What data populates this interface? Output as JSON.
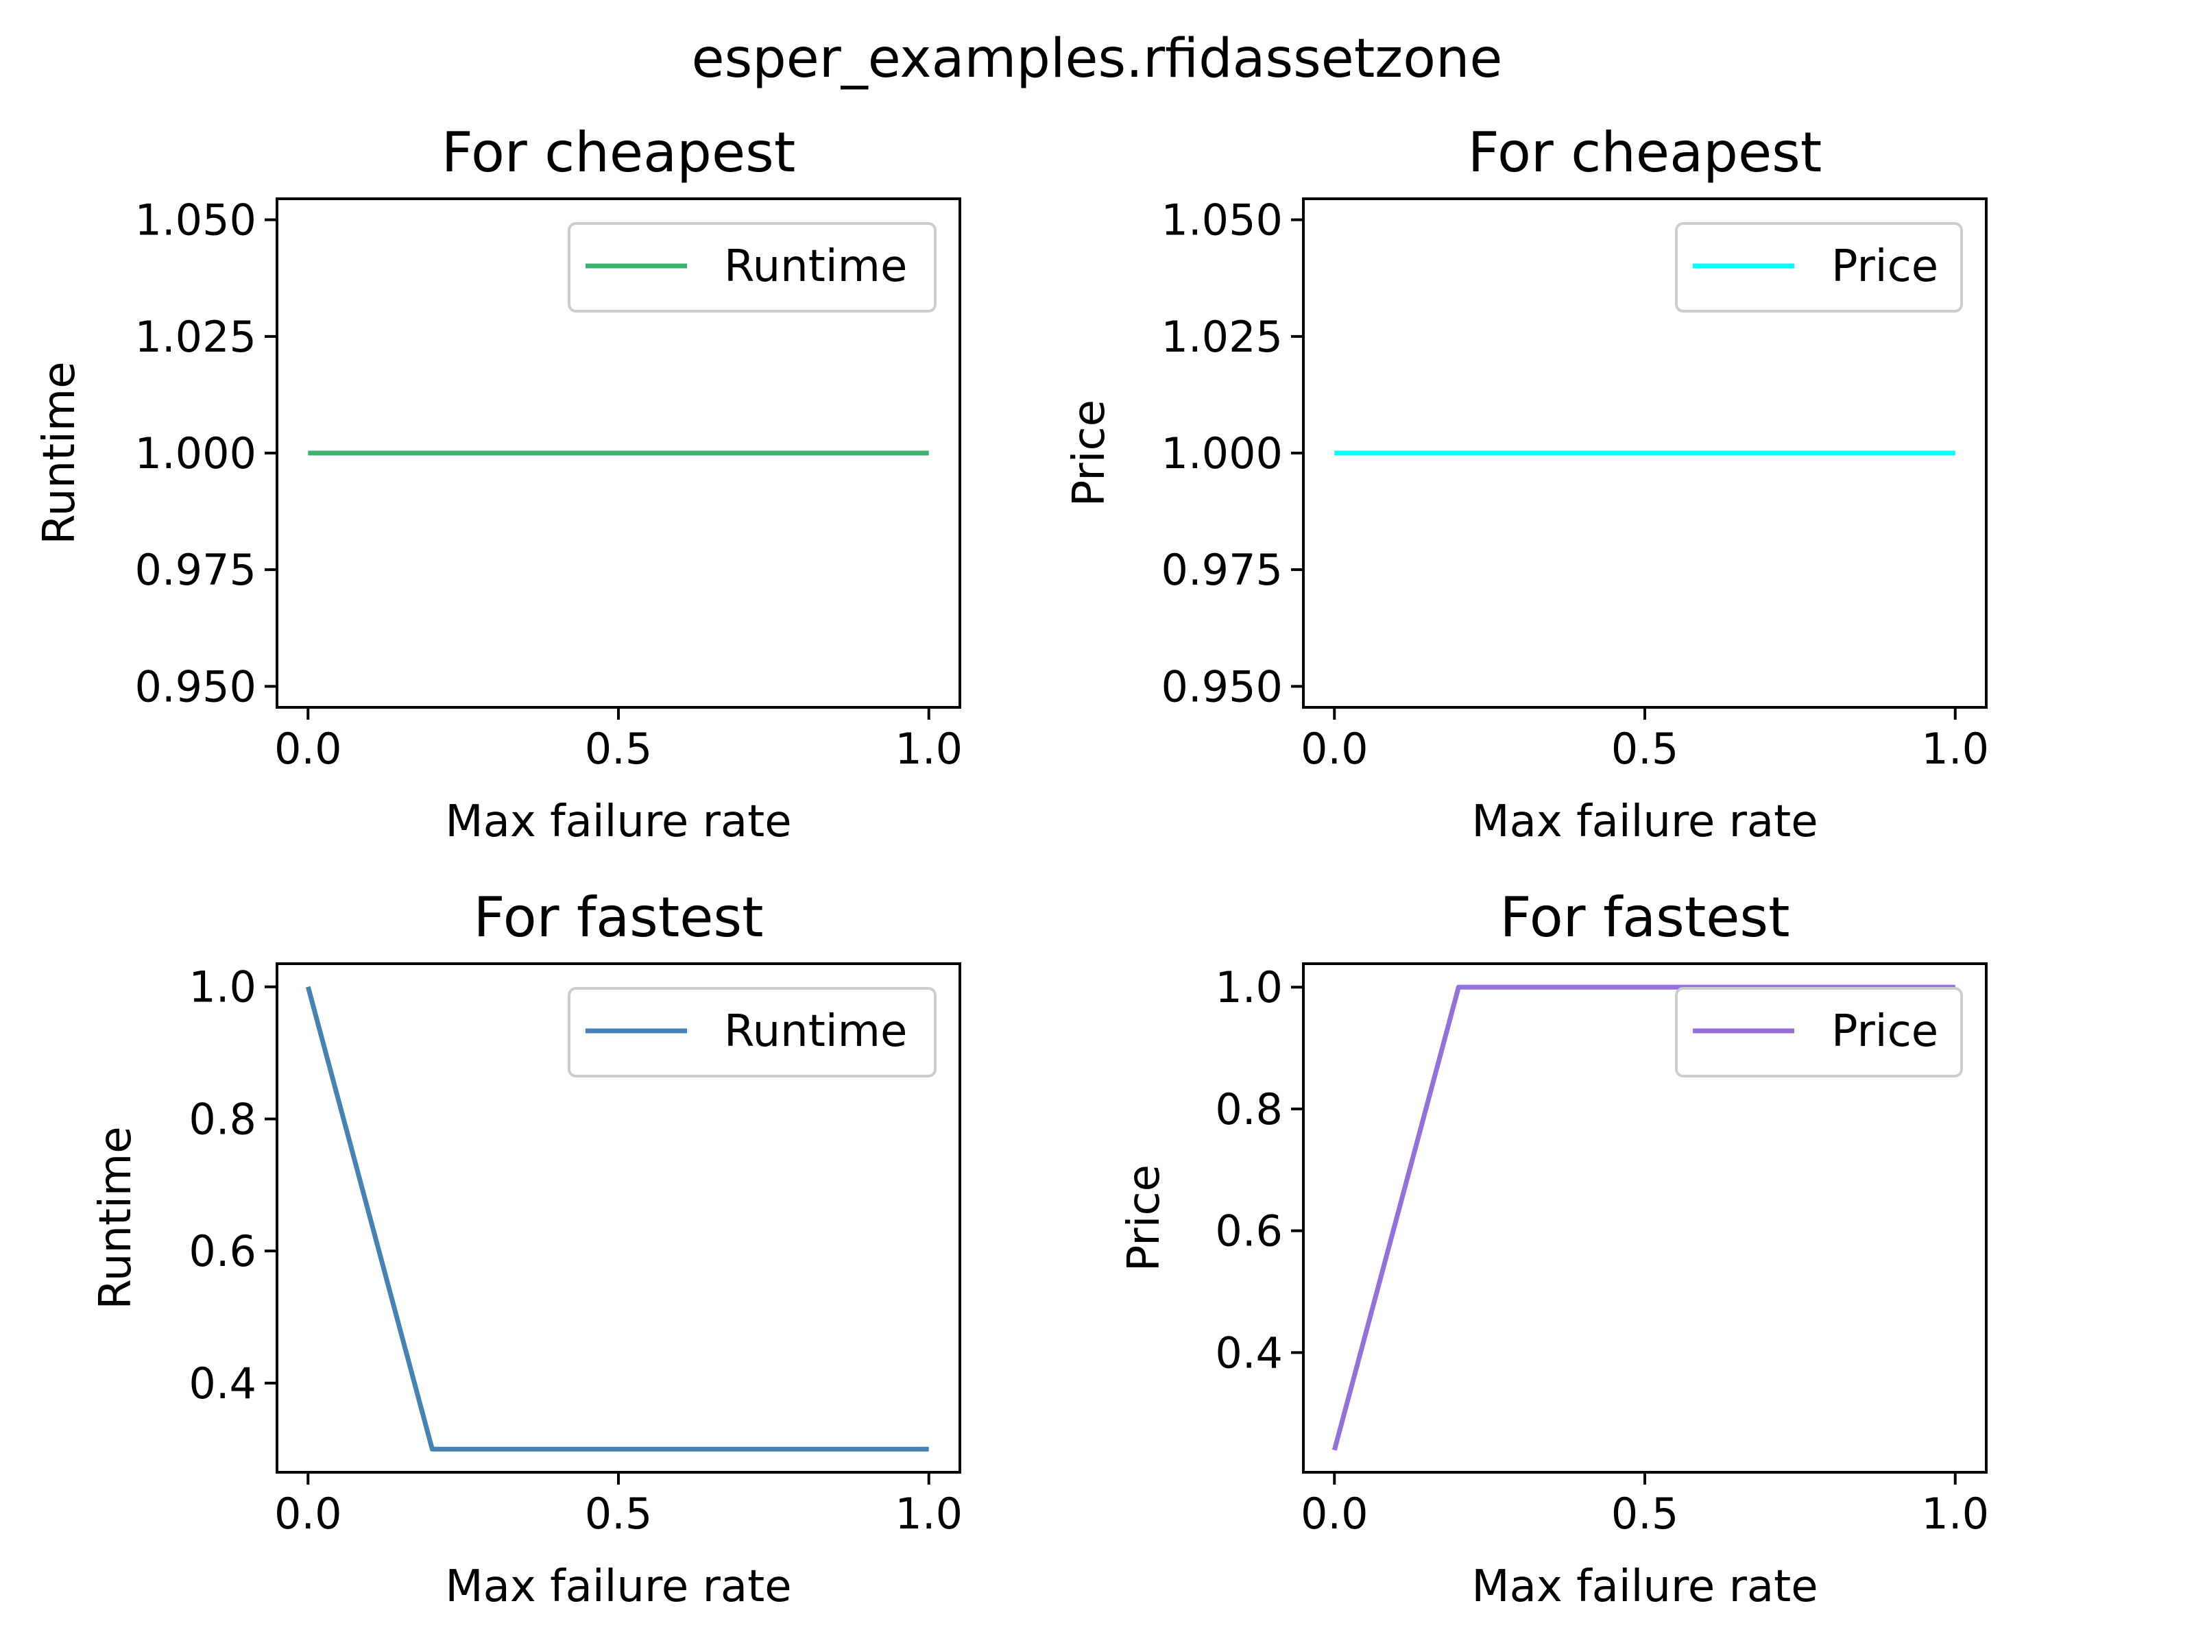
{
  "figure": {
    "suptitle": "esper_examples.rfidassetzone"
  },
  "chart_data": [
    {
      "type": "line",
      "title": "For cheapest",
      "xlabel": "Max failure rate",
      "ylabel": "Runtime",
      "xlim": [
        -0.05,
        1.05
      ],
      "ylim": [
        0.9455,
        1.0545
      ],
      "xticks": [
        0.0,
        0.5,
        1.0
      ],
      "xtick_labels": [
        "0.0",
        "0.5",
        "1.0"
      ],
      "yticks": [
        0.95,
        0.975,
        1.0,
        1.025,
        1.05
      ],
      "ytick_labels": [
        "0.950",
        "0.975",
        "1.000",
        "1.025",
        "1.050"
      ],
      "legend_position": "top-right",
      "series": [
        {
          "name": "Runtime",
          "color": "#3cb371",
          "x": [
            0.0,
            0.2,
            1.0
          ],
          "y": [
            1.0,
            1.0,
            1.0
          ]
        }
      ]
    },
    {
      "type": "line",
      "title": "For cheapest",
      "xlabel": "Max failure rate",
      "ylabel": "Price",
      "xlim": [
        -0.05,
        1.05
      ],
      "ylim": [
        0.9455,
        1.0545
      ],
      "xticks": [
        0.0,
        0.5,
        1.0
      ],
      "xtick_labels": [
        "0.0",
        "0.5",
        "1.0"
      ],
      "yticks": [
        0.95,
        0.975,
        1.0,
        1.025,
        1.05
      ],
      "ytick_labels": [
        "0.950",
        "0.975",
        "1.000",
        "1.025",
        "1.050"
      ],
      "legend_position": "top-right",
      "series": [
        {
          "name": "Price",
          "color": "#00ffff",
          "x": [
            0.0,
            0.2,
            1.0
          ],
          "y": [
            1.0,
            1.0,
            1.0
          ]
        }
      ]
    },
    {
      "type": "line",
      "title": "For fastest",
      "xlabel": "Max failure rate",
      "ylabel": "Runtime",
      "xlim": [
        -0.05,
        1.05
      ],
      "ylim": [
        0.265,
        1.035
      ],
      "xticks": [
        0.0,
        0.5,
        1.0
      ],
      "xtick_labels": [
        "0.0",
        "0.5",
        "1.0"
      ],
      "yticks": [
        0.4,
        0.6,
        0.8,
        1.0
      ],
      "ytick_labels": [
        "0.4",
        "0.6",
        "0.8",
        "1.0"
      ],
      "legend_position": "top-right",
      "series": [
        {
          "name": "Runtime",
          "color": "#4682b4",
          "x": [
            0.0,
            0.2,
            1.0
          ],
          "y": [
            1.0,
            0.3,
            0.3
          ]
        }
      ]
    },
    {
      "type": "line",
      "title": "For fastest",
      "xlabel": "Max failure rate",
      "ylabel": "Price",
      "xlim": [
        -0.05,
        1.05
      ],
      "ylim": [
        0.2035,
        1.0385
      ],
      "xticks": [
        0.0,
        0.5,
        1.0
      ],
      "xtick_labels": [
        "0.0",
        "0.5",
        "1.0"
      ],
      "yticks": [
        0.4,
        0.6,
        0.8,
        1.0
      ],
      "ytick_labels": [
        "0.4",
        "0.6",
        "0.8",
        "1.0"
      ],
      "legend_position": "top-right",
      "series": [
        {
          "name": "Price",
          "color": "#9370db",
          "x": [
            0.0,
            0.2,
            1.0
          ],
          "y": [
            0.24,
            1.0,
            1.0
          ]
        }
      ]
    }
  ]
}
